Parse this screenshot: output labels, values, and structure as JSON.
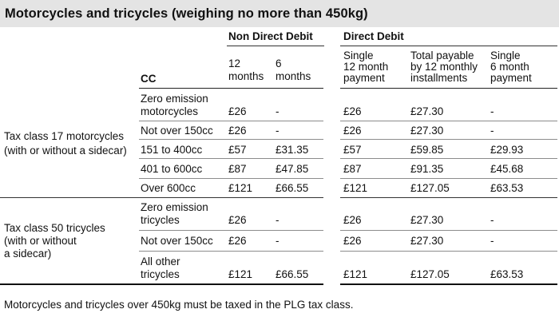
{
  "title": "Motorcycles and tricycles (weighing no more than 450kg)",
  "groups": {
    "non_direct_debit": "Non Direct Debit",
    "direct_debit": "Direct Debit"
  },
  "columns": {
    "cc": "CC",
    "nd_12": [
      "12",
      "months"
    ],
    "nd_6": [
      "6",
      "months"
    ],
    "dd_single12": [
      "Single",
      "12 month",
      "payment"
    ],
    "dd_total": [
      "Total payable",
      "by 12 monthly",
      "installments"
    ],
    "dd_single6": [
      "Single",
      "6 month",
      "payment"
    ]
  },
  "sections": [
    {
      "label": [
        "Tax class 17 motorcycles",
        "(with or without a sidecar)"
      ],
      "rows": [
        {
          "cc": [
            "Zero emission",
            "motorcycles"
          ],
          "nd12": "£26",
          "nd6": "-",
          "dd12": "£26",
          "total": "£27.30",
          "dd6": "-"
        },
        {
          "cc": [
            "Not over 150cc"
          ],
          "nd12": "£26",
          "nd6": "-",
          "dd12": "£26",
          "total": "£27.30",
          "dd6": "-"
        },
        {
          "cc": [
            "151 to 400cc"
          ],
          "nd12": "£57",
          "nd6": "£31.35",
          "dd12": "£57",
          "total": "£59.85",
          "dd6": "£29.93"
        },
        {
          "cc": [
            "401 to 600cc"
          ],
          "nd12": "£87",
          "nd6": "£47.85",
          "dd12": "£87",
          "total": "£91.35",
          "dd6": "£45.68"
        },
        {
          "cc": [
            "Over 600cc"
          ],
          "nd12": "£121",
          "nd6": "£66.55",
          "dd12": "£121",
          "total": "£127.05",
          "dd6": "£63.53"
        }
      ]
    },
    {
      "label": [
        "Tax class 50 tricycles",
        "(with or without",
        "a sidecar)"
      ],
      "rows": [
        {
          "cc": [
            "Zero emission",
            "tricycles"
          ],
          "nd12": "£26",
          "nd6": "-",
          "dd12": "£26",
          "total": "£27.30",
          "dd6": "-"
        },
        {
          "cc": [
            "Not over 150cc"
          ],
          "nd12": "£26",
          "nd6": "-",
          "dd12": "£26",
          "total": "£27.30",
          "dd6": "-"
        },
        {
          "cc": [
            "All other",
            "tricycles"
          ],
          "nd12": "£121",
          "nd6": "£66.55",
          "dd12": "£121",
          "total": "£127.05",
          "dd6": "£63.53"
        }
      ]
    }
  ],
  "footnote": "Motorcycles and tricycles over 450kg must be taxed in the PLG tax class."
}
